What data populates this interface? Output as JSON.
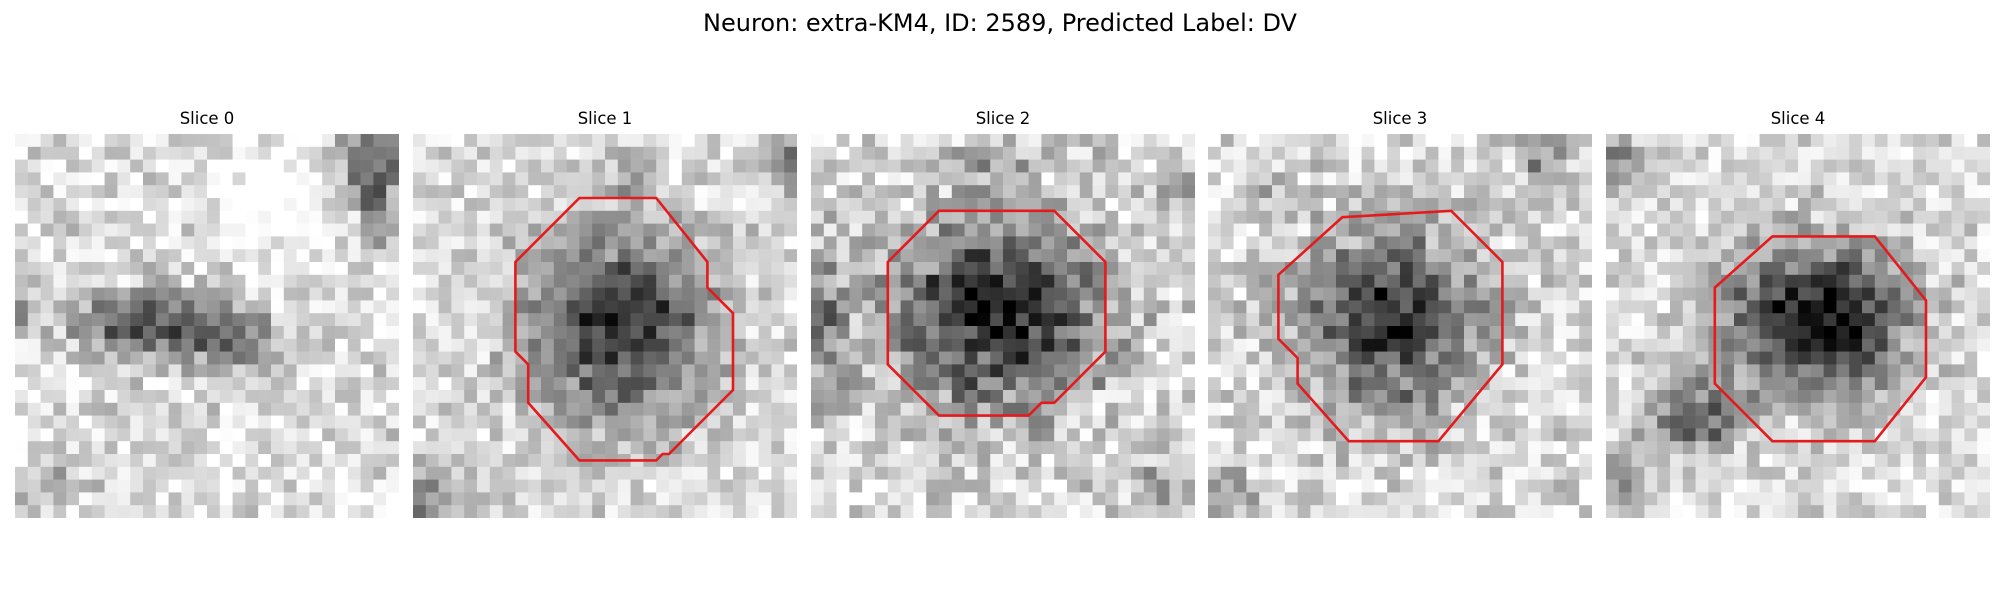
{
  "figure": {
    "title": "Neuron: extra-KM4, ID: 2589, Predicted Label: DV"
  },
  "panels": [
    {
      "title": "Slice 0",
      "has_contour": false
    },
    {
      "title": "Slice 1",
      "has_contour": true
    },
    {
      "title": "Slice 2",
      "has_contour": true
    },
    {
      "title": "Slice 3",
      "has_contour": true
    },
    {
      "title": "Slice 4",
      "has_contour": true
    }
  ],
  "colors": {
    "contour": "#e41a1c",
    "background": "#ffffff"
  }
}
